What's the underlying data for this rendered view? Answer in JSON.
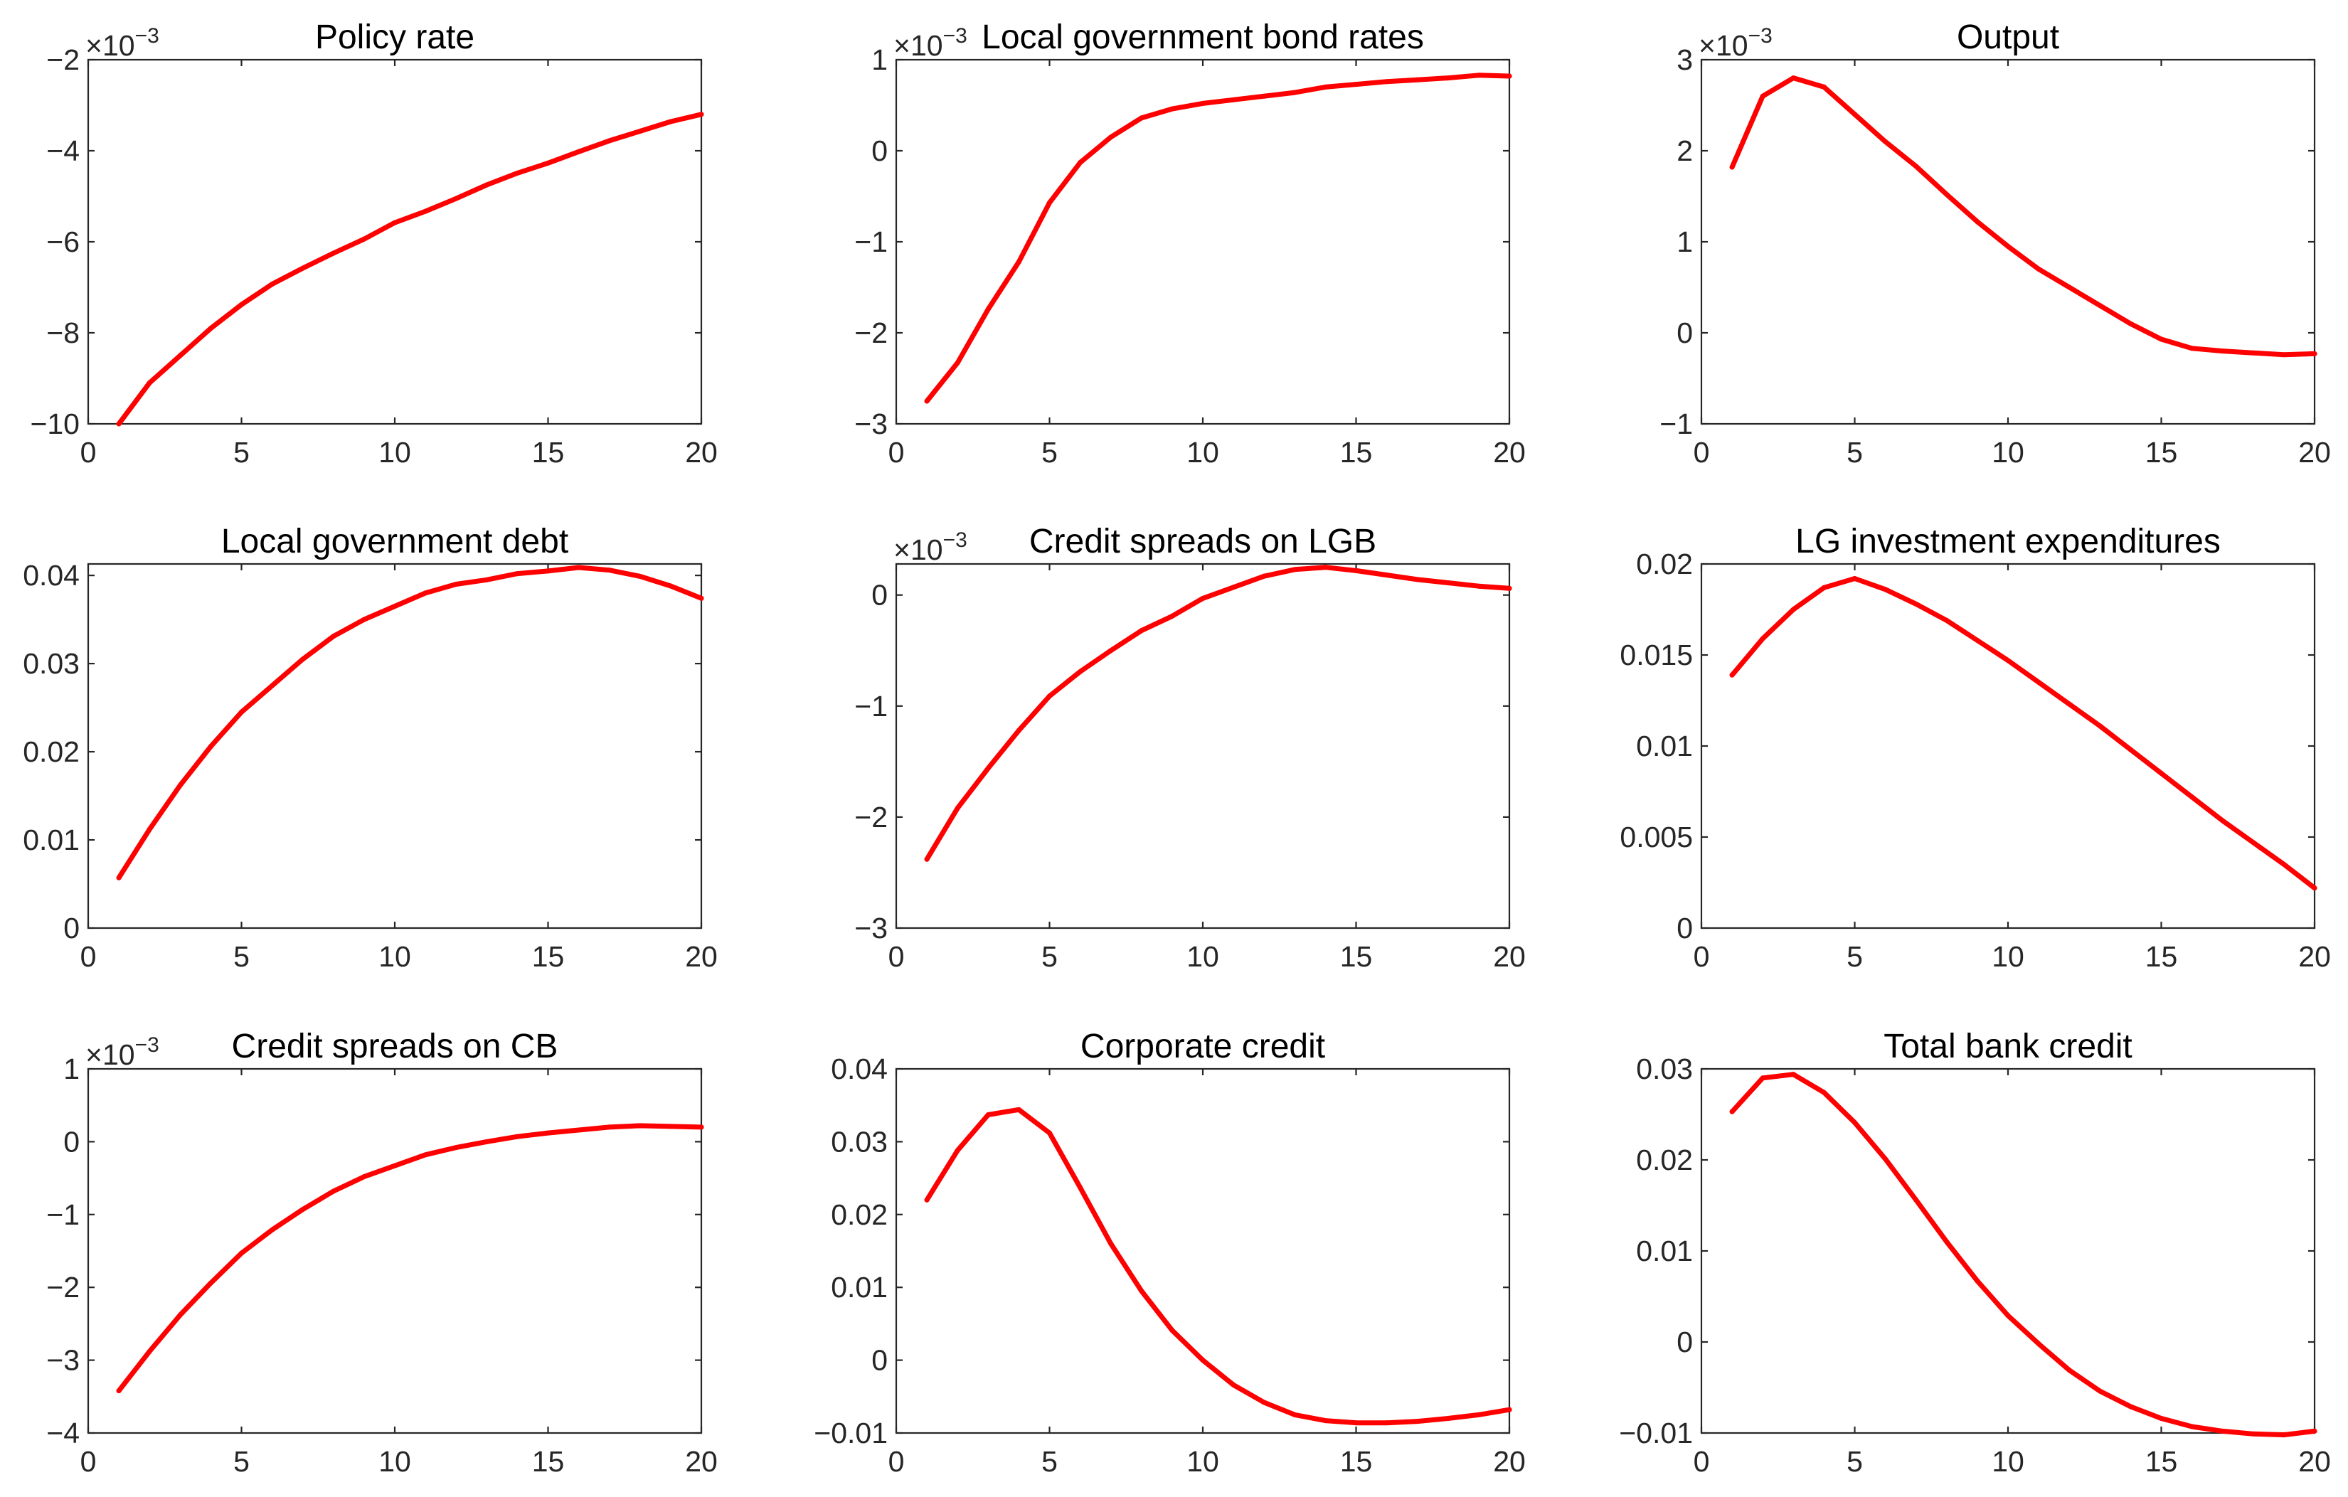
{
  "figure": {
    "line_color": "#ff0000",
    "axis_color": "#262626"
  },
  "chart_data": [
    {
      "type": "line",
      "title": "Policy rate",
      "exponent": "-3",
      "x": [
        1,
        2,
        3,
        4,
        5,
        6,
        7,
        8,
        9,
        10,
        11,
        12,
        13,
        14,
        15,
        16,
        17,
        18,
        19,
        20
      ],
      "values": [
        -10.0,
        -9.1,
        -8.5,
        -7.9,
        -7.38,
        -6.93,
        -6.58,
        -6.25,
        -5.94,
        -5.58,
        -5.33,
        -5.05,
        -4.75,
        -4.49,
        -4.27,
        -4.02,
        -3.78,
        -3.57,
        -3.36,
        -3.2
      ],
      "xlim": [
        0,
        20
      ],
      "ylim": [
        -10,
        -2
      ],
      "xticks": [
        0,
        5,
        10,
        15,
        20
      ],
      "yticks": [
        -10,
        -8,
        -6,
        -4,
        -2
      ],
      "xtick_labels": [
        "0",
        "5",
        "10",
        "15",
        "20"
      ],
      "ytick_labels": [
        "−10",
        "−8",
        "−6",
        "−4",
        "−2"
      ]
    },
    {
      "type": "line",
      "title": "Local government bond rates",
      "exponent": "-3",
      "x": [
        1,
        2,
        3,
        4,
        5,
        6,
        7,
        8,
        9,
        10,
        11,
        12,
        13,
        14,
        15,
        16,
        17,
        18,
        19,
        20
      ],
      "values": [
        -2.75,
        -2.33,
        -1.74,
        -1.22,
        -0.57,
        -0.13,
        0.15,
        0.36,
        0.46,
        0.52,
        0.56,
        0.6,
        0.64,
        0.7,
        0.73,
        0.76,
        0.78,
        0.8,
        0.83,
        0.82
      ],
      "xlim": [
        0,
        20
      ],
      "ylim": [
        -3,
        1
      ],
      "xticks": [
        0,
        5,
        10,
        15,
        20
      ],
      "yticks": [
        -3,
        -2,
        -1,
        0,
        1
      ],
      "xtick_labels": [
        "0",
        "5",
        "10",
        "15",
        "20"
      ],
      "ytick_labels": [
        "−3",
        "−2",
        "−1",
        "0",
        "1"
      ]
    },
    {
      "type": "line",
      "title": "Output",
      "exponent": "-3",
      "x": [
        1,
        2,
        3,
        4,
        5,
        6,
        7,
        8,
        9,
        10,
        11,
        12,
        13,
        14,
        15,
        16,
        17,
        18,
        19,
        20
      ],
      "values": [
        1.82,
        2.6,
        2.8,
        2.7,
        2.4,
        2.1,
        1.83,
        1.52,
        1.22,
        0.95,
        0.7,
        0.5,
        0.3,
        0.1,
        -0.07,
        -0.17,
        -0.2,
        -0.22,
        -0.24,
        -0.23
      ],
      "xlim": [
        0,
        20
      ],
      "ylim": [
        -1,
        3
      ],
      "xticks": [
        0,
        5,
        10,
        15,
        20
      ],
      "yticks": [
        -1,
        0,
        1,
        2,
        3
      ],
      "xtick_labels": [
        "0",
        "5",
        "10",
        "15",
        "20"
      ],
      "ytick_labels": [
        "−1",
        "0",
        "1",
        "2",
        "3"
      ]
    },
    {
      "type": "line",
      "title": "Local government debt",
      "exponent": "",
      "x": [
        1,
        2,
        3,
        4,
        5,
        6,
        7,
        8,
        9,
        10,
        11,
        12,
        13,
        14,
        15,
        16,
        17,
        18,
        19,
        20
      ],
      "values": [
        0.0057,
        0.0112,
        0.0162,
        0.0206,
        0.0245,
        0.0275,
        0.0305,
        0.0331,
        0.035,
        0.0365,
        0.038,
        0.039,
        0.0395,
        0.0402,
        0.0405,
        0.0409,
        0.0406,
        0.0399,
        0.0388,
        0.0374
      ],
      "xlim": [
        0,
        20
      ],
      "ylim": [
        0,
        0.0413
      ],
      "xticks": [
        0,
        5,
        10,
        15,
        20
      ],
      "yticks": [
        0,
        0.01,
        0.02,
        0.03,
        0.04
      ],
      "xtick_labels": [
        "0",
        "5",
        "10",
        "15",
        "20"
      ],
      "ytick_labels": [
        "0",
        "0.01",
        "0.02",
        "0.03",
        "0.04"
      ]
    },
    {
      "type": "line",
      "title": "Credit spreads on LGB",
      "exponent": "-3",
      "x": [
        1,
        2,
        3,
        4,
        5,
        6,
        7,
        8,
        9,
        10,
        11,
        12,
        13,
        14,
        15,
        16,
        17,
        18,
        19,
        20
      ],
      "values": [
        -2.38,
        -1.92,
        -1.56,
        -1.22,
        -0.91,
        -0.69,
        -0.5,
        -0.32,
        -0.19,
        -0.03,
        0.07,
        0.17,
        0.23,
        0.25,
        0.22,
        0.18,
        0.14,
        0.11,
        0.08,
        0.06
      ],
      "xlim": [
        0,
        20
      ],
      "ylim": [
        -3,
        0.28
      ],
      "xticks": [
        0,
        5,
        10,
        15,
        20
      ],
      "yticks": [
        -3,
        -2,
        -1,
        0
      ],
      "xtick_labels": [
        "0",
        "5",
        "10",
        "15",
        "20"
      ],
      "ytick_labels": [
        "−3",
        "−2",
        "−1",
        "0"
      ]
    },
    {
      "type": "line",
      "title": "LG investment expenditures",
      "exponent": "",
      "x": [
        1,
        2,
        3,
        4,
        5,
        6,
        7,
        8,
        9,
        10,
        11,
        12,
        13,
        14,
        15,
        16,
        17,
        18,
        19,
        20
      ],
      "values": [
        0.0139,
        0.0159,
        0.0175,
        0.0187,
        0.0192,
        0.0186,
        0.0178,
        0.0169,
        0.0158,
        0.0147,
        0.0135,
        0.0123,
        0.0111,
        0.0098,
        0.0085,
        0.0072,
        0.0059,
        0.0047,
        0.0035,
        0.0022
      ],
      "xlim": [
        0,
        20
      ],
      "ylim": [
        0,
        0.02
      ],
      "xticks": [
        0,
        5,
        10,
        15,
        20
      ],
      "yticks": [
        0,
        0.005,
        0.01,
        0.015,
        0.02
      ],
      "xtick_labels": [
        "0",
        "5",
        "10",
        "15",
        "20"
      ],
      "ytick_labels": [
        "0",
        "0.005",
        "0.01",
        "0.015",
        "0.02"
      ]
    },
    {
      "type": "line",
      "title": "Credit spreads on CB",
      "exponent": "-3",
      "x": [
        1,
        2,
        3,
        4,
        5,
        6,
        7,
        8,
        9,
        10,
        11,
        12,
        13,
        14,
        15,
        16,
        17,
        18,
        19,
        20
      ],
      "values": [
        -3.42,
        -2.88,
        -2.38,
        -1.94,
        -1.53,
        -1.21,
        -0.93,
        -0.68,
        -0.48,
        -0.33,
        -0.18,
        -0.08,
        0.0,
        0.07,
        0.12,
        0.16,
        0.2,
        0.22,
        0.21,
        0.2
      ],
      "xlim": [
        0,
        20
      ],
      "ylim": [
        -4,
        1
      ],
      "xticks": [
        0,
        5,
        10,
        15,
        20
      ],
      "yticks": [
        -4,
        -3,
        -2,
        -1,
        0,
        1
      ],
      "xtick_labels": [
        "0",
        "5",
        "10",
        "15",
        "20"
      ],
      "ytick_labels": [
        "−4",
        "−3",
        "−2",
        "−1",
        "0",
        "1"
      ]
    },
    {
      "type": "line",
      "title": "Corporate credit",
      "exponent": "",
      "x": [
        1,
        2,
        3,
        4,
        5,
        6,
        7,
        8,
        9,
        10,
        11,
        12,
        13,
        14,
        15,
        16,
        17,
        18,
        19,
        20
      ],
      "values": [
        0.022,
        0.0288,
        0.0337,
        0.0344,
        0.0312,
        0.0237,
        0.016,
        0.0095,
        0.0041,
        0.0,
        -0.0034,
        -0.0058,
        -0.0075,
        -0.0083,
        -0.0086,
        -0.0086,
        -0.0084,
        -0.008,
        -0.0075,
        -0.0068
      ],
      "xlim": [
        0,
        20
      ],
      "ylim": [
        -0.01,
        0.04
      ],
      "xticks": [
        0,
        5,
        10,
        15,
        20
      ],
      "yticks": [
        -0.01,
        0,
        0.01,
        0.02,
        0.03,
        0.04
      ],
      "xtick_labels": [
        "0",
        "5",
        "10",
        "15",
        "20"
      ],
      "ytick_labels": [
        "−0.01",
        "0",
        "0.01",
        "0.02",
        "0.03",
        "0.04"
      ]
    },
    {
      "type": "line",
      "title": "Total bank credit",
      "exponent": "",
      "x": [
        1,
        2,
        3,
        4,
        5,
        6,
        7,
        8,
        9,
        10,
        11,
        12,
        13,
        14,
        15,
        16,
        17,
        18,
        19,
        20
      ],
      "values": [
        0.0253,
        0.029,
        0.0294,
        0.0274,
        0.0241,
        0.0201,
        0.0156,
        0.011,
        0.0067,
        0.0029,
        -0.0002,
        -0.0031,
        -0.0054,
        -0.0071,
        -0.0084,
        -0.0093,
        -0.0098,
        -0.0101,
        -0.0102,
        -0.0098
      ],
      "xlim": [
        0,
        20
      ],
      "ylim": [
        -0.01,
        0.03
      ],
      "xticks": [
        0,
        5,
        10,
        15,
        20
      ],
      "yticks": [
        -0.01,
        0,
        0.01,
        0.02,
        0.03
      ],
      "xtick_labels": [
        "0",
        "5",
        "10",
        "15",
        "20"
      ],
      "ytick_labels": [
        "−0.01",
        "0",
        "0.01",
        "0.02",
        "0.03"
      ]
    }
  ]
}
